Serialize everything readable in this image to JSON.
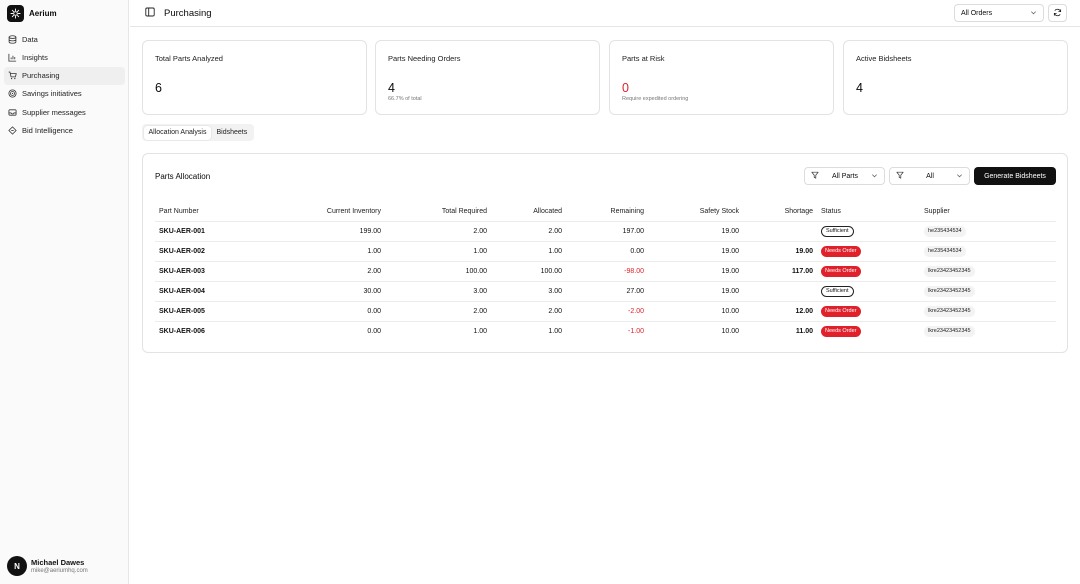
{
  "app": {
    "name": "Aerium",
    "logo_icon": "aerium-logo-icon"
  },
  "sidebar": {
    "items": [
      {
        "label": "Data",
        "icon": "database-icon",
        "active": false
      },
      {
        "label": "Insights",
        "icon": "chart-icon",
        "active": false
      },
      {
        "label": "Purchasing",
        "icon": "cart-icon",
        "active": true
      },
      {
        "label": "Savings initiatives",
        "icon": "target-icon",
        "active": false
      },
      {
        "label": "Supplier messages",
        "icon": "inbox-icon",
        "active": false
      },
      {
        "label": "Bid Intelligence",
        "icon": "diamond-icon",
        "active": false
      }
    ]
  },
  "user": {
    "initial": "N",
    "name": "Michael Dawes",
    "email": "mike@aeriumhq.com"
  },
  "header": {
    "title": "Purchasing",
    "order_filter": "All Orders"
  },
  "stats": [
    {
      "label": "Total Parts Analyzed",
      "value": "6",
      "sub": ""
    },
    {
      "label": "Parts Needing Orders",
      "value": "4",
      "sub": "66.7% of total"
    },
    {
      "label": "Parts at Risk",
      "value": "0",
      "sub": "Require expedited ordering"
    },
    {
      "label": "Active Bidsheets",
      "value": "4",
      "sub": ""
    }
  ],
  "tabs": [
    {
      "label": "Allocation Analysis",
      "active": true
    },
    {
      "label": "Bidsheets",
      "active": false
    }
  ],
  "allocation": {
    "title": "Parts Allocation",
    "parts_filter": "All Parts",
    "status_filter": "All",
    "generate_label": "Generate Bidsheets",
    "columns": [
      "Part Number",
      "Current Inventory",
      "Total Required",
      "Allocated",
      "Remaining",
      "Safety Stock",
      "Shortage",
      "Status",
      "Supplier"
    ],
    "rows": [
      {
        "part": "SKU-AER-001",
        "inventory": "199.00",
        "required": "2.00",
        "allocated": "2.00",
        "remaining": "197.00",
        "safety": "19.00",
        "shortage": "",
        "status": "Sufficient",
        "supplier": "he235434534"
      },
      {
        "part": "SKU-AER-002",
        "inventory": "1.00",
        "required": "1.00",
        "allocated": "1.00",
        "remaining": "0.00",
        "safety": "19.00",
        "shortage": "19.00",
        "status": "Needs Order",
        "supplier": "he235434534"
      },
      {
        "part": "SKU-AER-003",
        "inventory": "2.00",
        "required": "100.00",
        "allocated": "100.00",
        "remaining": "-98.00",
        "safety": "19.00",
        "shortage": "117.00",
        "status": "Needs Order",
        "supplier": "lkre23423452345"
      },
      {
        "part": "SKU-AER-004",
        "inventory": "30.00",
        "required": "3.00",
        "allocated": "3.00",
        "remaining": "27.00",
        "safety": "19.00",
        "shortage": "",
        "status": "Sufficient",
        "supplier": "lkre23423452345"
      },
      {
        "part": "SKU-AER-005",
        "inventory": "0.00",
        "required": "2.00",
        "allocated": "2.00",
        "remaining": "-2.00",
        "safety": "10.00",
        "shortage": "12.00",
        "status": "Needs Order",
        "supplier": "lkre23423452345"
      },
      {
        "part": "SKU-AER-006",
        "inventory": "0.00",
        "required": "1.00",
        "allocated": "1.00",
        "remaining": "-1.00",
        "safety": "10.00",
        "shortage": "11.00",
        "status": "Needs Order",
        "supplier": "lkre23423452345"
      }
    ]
  },
  "colors": {
    "accent": "#111111",
    "danger": "#e0212b",
    "muted": "#777777"
  }
}
